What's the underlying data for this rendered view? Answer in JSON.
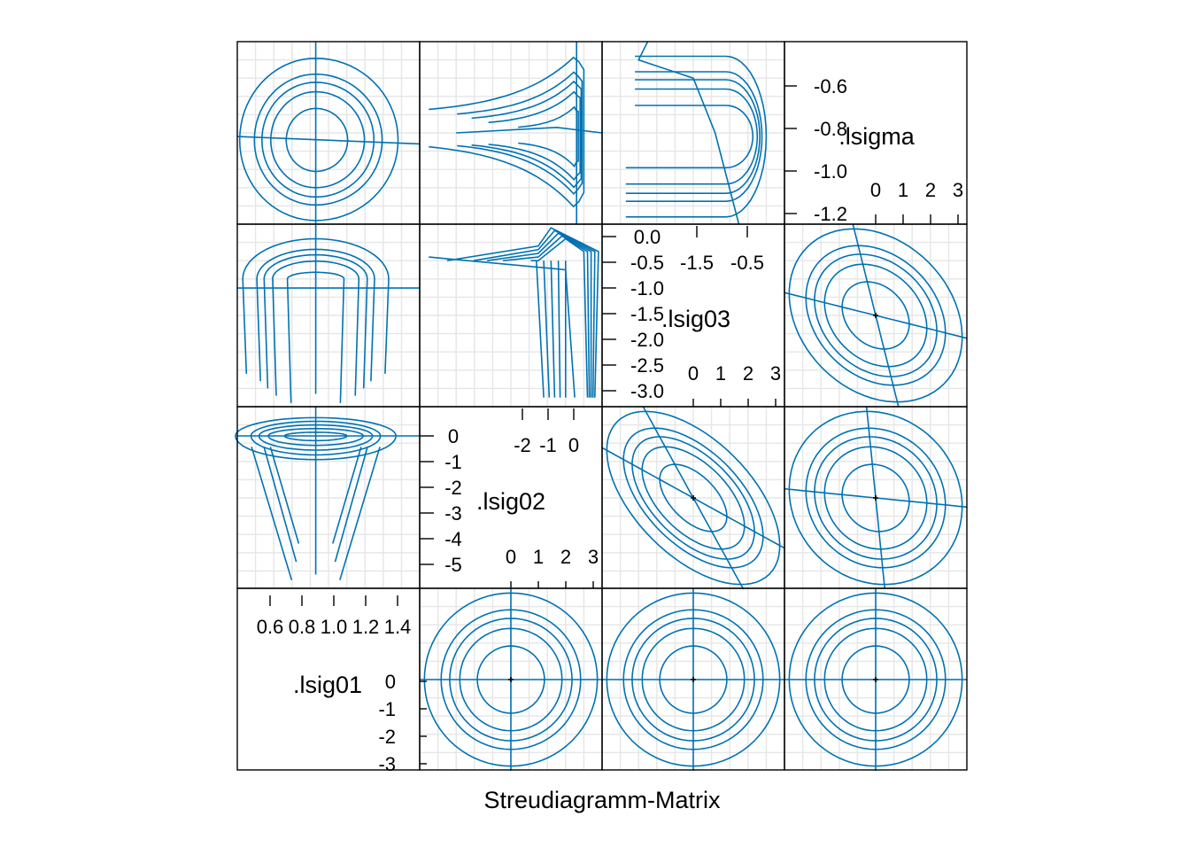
{
  "chart_data": {
    "type": "scatter",
    "subtype": "profile-pairs-splom",
    "xlabel": "Streudiagramm-Matrix",
    "colors": {
      "curve": "#0072B2",
      "frame": "#000000",
      "grid": "#E6E6E6",
      "marker": "#000000"
    },
    "grid": true,
    "variables": [
      {
        "name": ".lsig01",
        "range": [
          0.5,
          1.58
        ],
        "ticks": [
          "0.6",
          "0.8",
          "1.0",
          "1.2",
          "1.4"
        ],
        "zeta_ticks": [
          "0",
          "-1",
          "-2",
          "-3"
        ]
      },
      {
        "name": ".lsig02",
        "range": [
          -3.1,
          0.7
        ],
        "ticks": [
          "-2",
          "-1",
          "0"
        ],
        "zeta_ticks": [
          "0",
          "1",
          "2",
          "3"
        ],
        "lower_ticks": [
          "0",
          "-1",
          "-2",
          "-3",
          "-4",
          "-5"
        ]
      },
      {
        "name": ".lsig03",
        "range": [
          -2.3,
          0.1
        ],
        "ticks": [
          "-1.5",
          "-0.5"
        ],
        "zeta_ticks": [
          "0",
          "1",
          "2",
          "3"
        ],
        "lower_ticks": [
          "0.0",
          "-0.5",
          "-1.0",
          "-1.5",
          "-2.0",
          "-2.5",
          "-3.0"
        ]
      },
      {
        "name": ".lsigma",
        "range": [
          -1.2,
          -0.55
        ],
        "ticks": [
          "0",
          "1",
          "2",
          "3"
        ],
        "lower_ticks": [
          "-0.6",
          "-0.8",
          "-1.0",
          "-1.2"
        ]
      }
    ],
    "contour_levels": [
      0.5,
      0.8,
      0.9,
      0.95,
      0.99
    ],
    "zeta_axis_range": [
      -3.2,
      3.2
    ],
    "estimates": {
      ".lsig01": 0.97,
      ".lsig02": -0.1,
      ".lsig03": -0.95,
      ".lsigma": -0.86
    },
    "lower_panels_zeta_scale": {
      "lsig02_vs_lsig01": {
        "correlation": 0.0
      },
      "lsig03_vs_lsig01": {
        "correlation": 0.0
      },
      "lsig03_vs_lsig02": {
        "correlation": -0.55
      },
      "lsigma_vs_lsig01": {
        "correlation": 0.0
      },
      "lsigma_vs_lsig02": {
        "correlation": -0.1
      },
      "lsigma_vs_lsig03": {
        "correlation": -0.25
      }
    },
    "upper_panels_original_scale": {
      "lsig01_lsig02": "trapezoid contours, narrow at bottom",
      "lsig01_lsig03": "arch contours opening downward",
      "lsig02_lsig03": "asymmetric contours with long vertical tails",
      "lsig01_lsigma": "near-circular nested contours",
      "lsig02_lsigma": "arrowhead contours pointing right",
      "lsig03_lsigma": "flat contours bending down on the right"
    }
  }
}
